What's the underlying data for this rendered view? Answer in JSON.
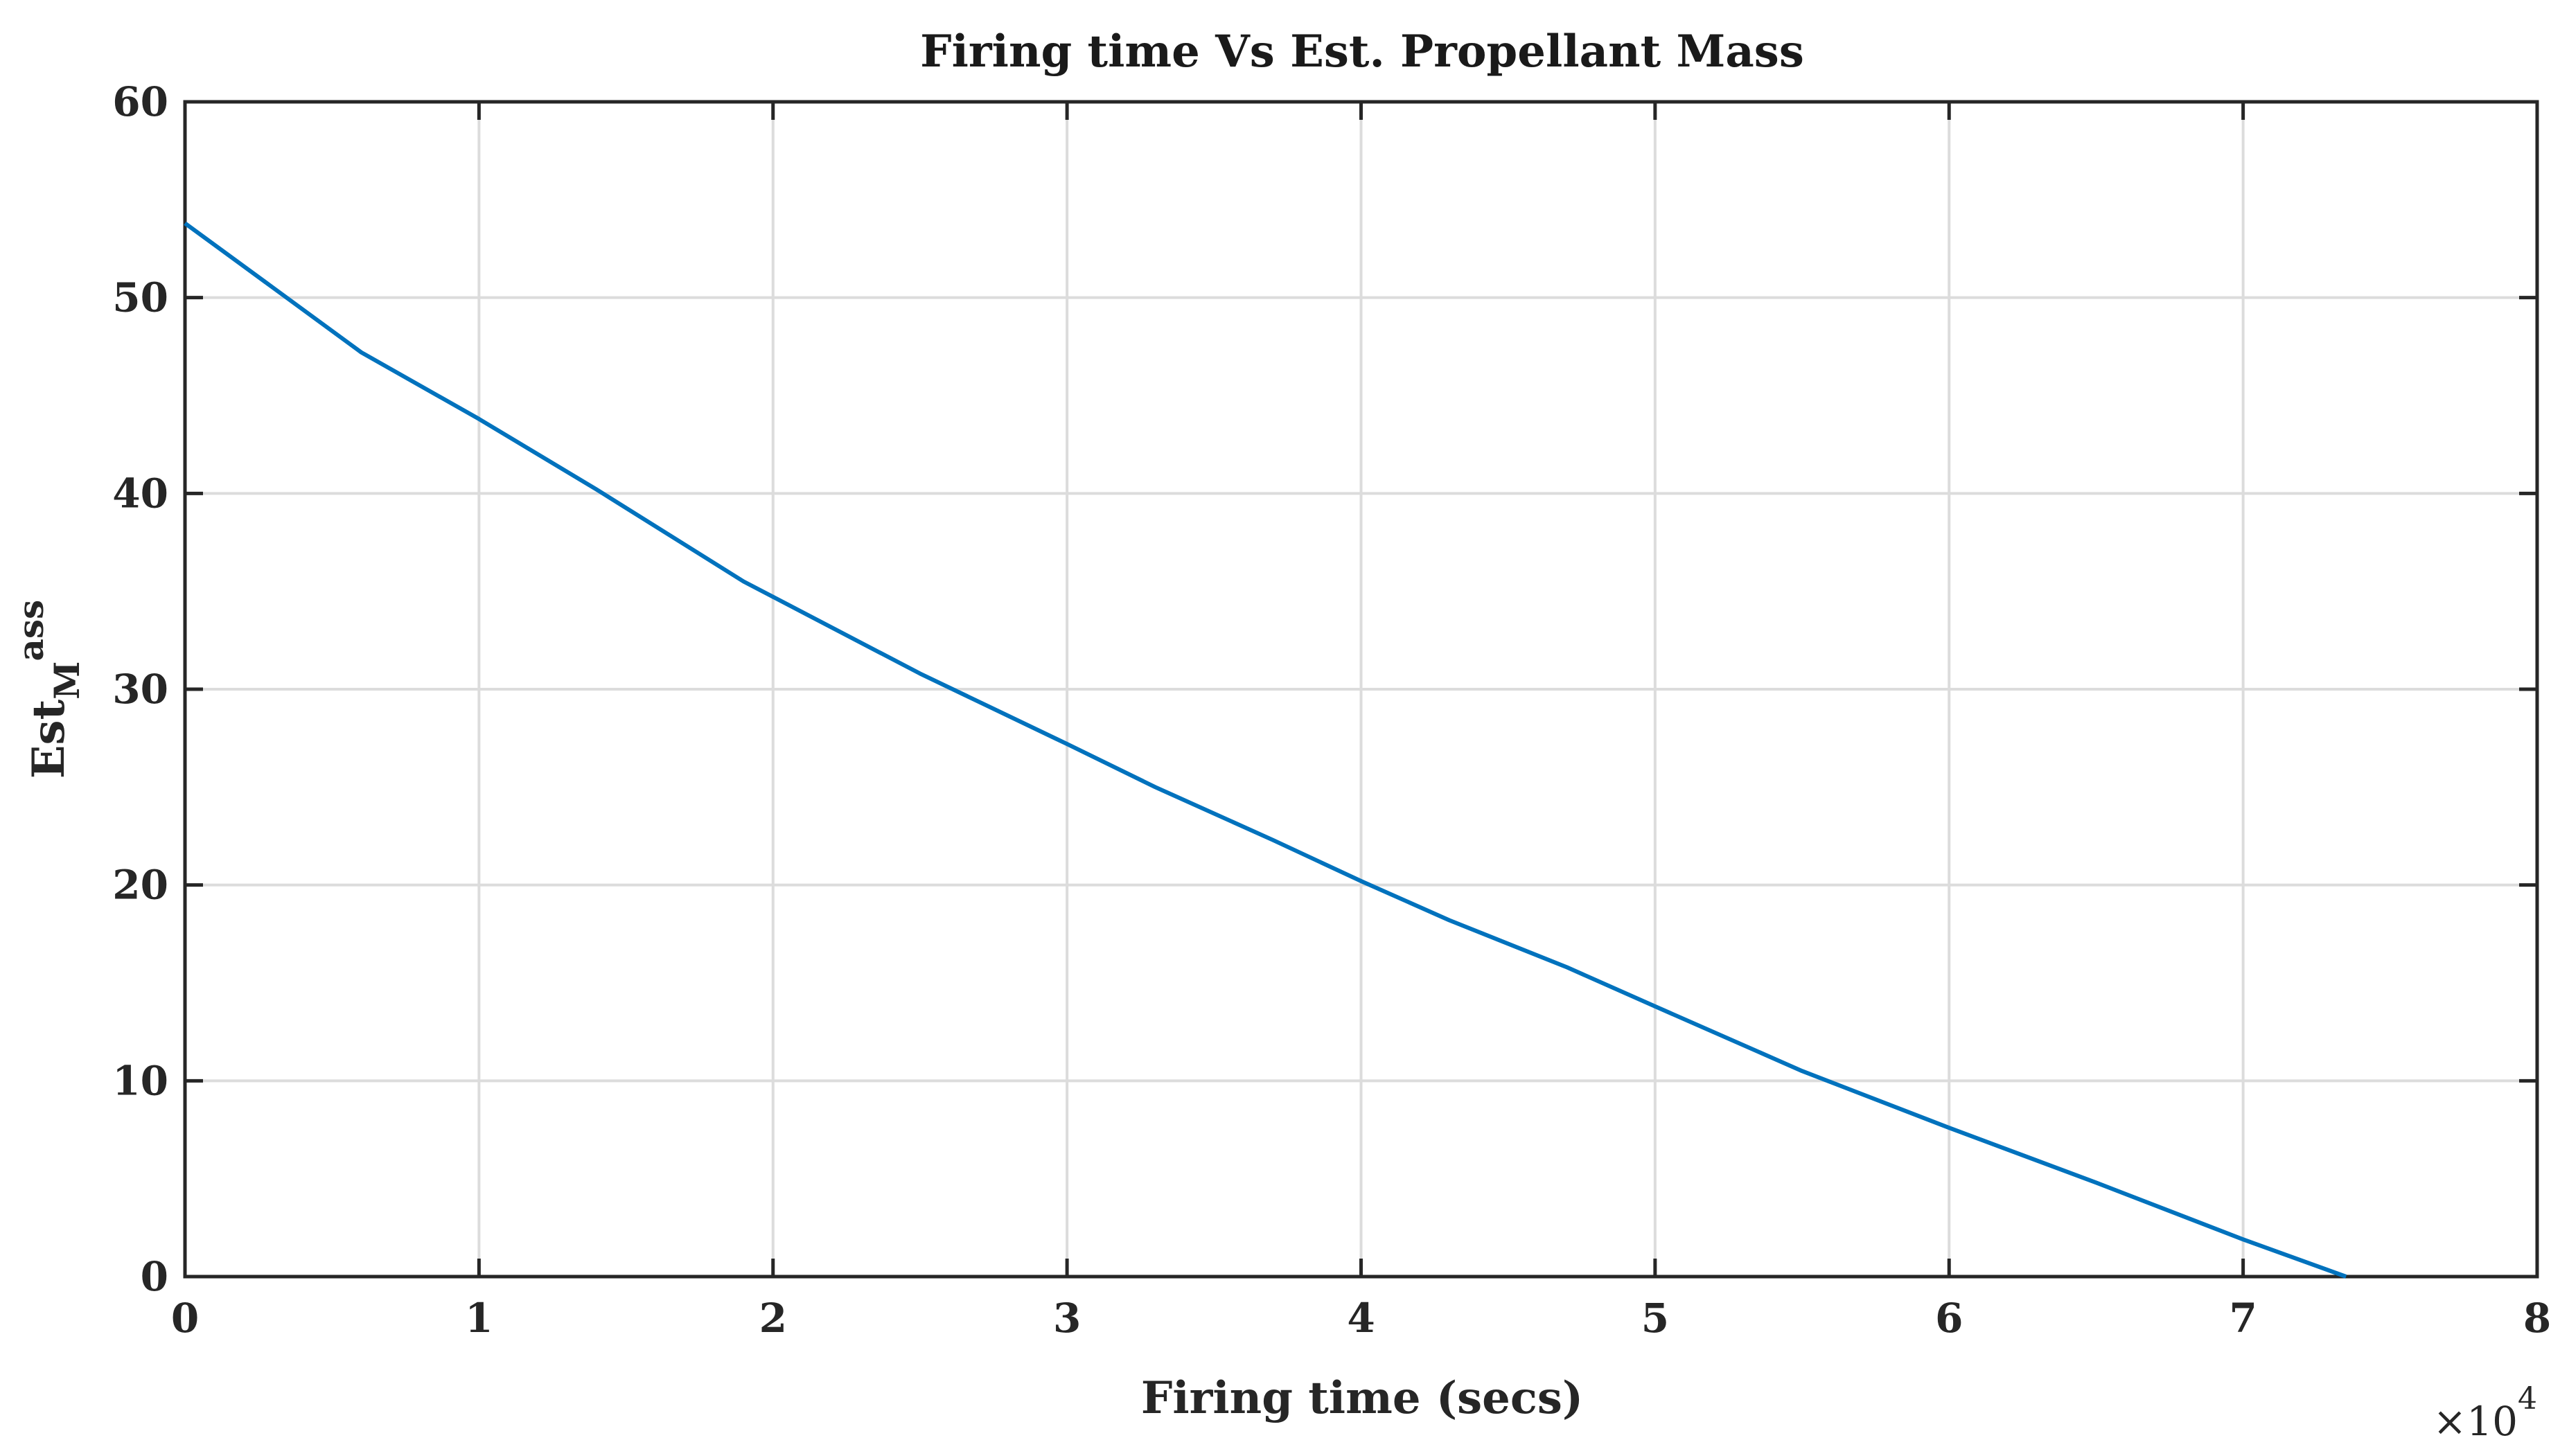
{
  "chart_data": {
    "type": "line",
    "title": "Firing time Vs Est. Propellant Mass",
    "xlabel": "Firing time (secs)",
    "ylabel": {
      "base": "Est",
      "sub": "M",
      "sup": "ass"
    },
    "x_multiplier": {
      "prefix": "×10",
      "power": "4"
    },
    "xlim": [
      0,
      8
    ],
    "ylim": [
      0,
      60
    ],
    "xticks": [
      0,
      1,
      2,
      3,
      4,
      5,
      6,
      7,
      8
    ],
    "yticks": [
      0,
      10,
      20,
      30,
      40,
      50,
      60
    ],
    "grid": true,
    "line_color": "#0072BD",
    "series": [
      {
        "x": [
          0,
          0.3,
          0.6,
          1.0,
          1.4,
          1.9,
          2.5,
          3.0,
          3.3,
          3.7,
          4.0,
          4.3,
          4.7,
          5.0,
          5.5,
          6.0,
          6.5,
          7.0,
          7.35
        ],
        "y": [
          53.8,
          50.5,
          47.2,
          43.8,
          40.2,
          35.5,
          30.8,
          27.2,
          25.0,
          22.3,
          20.2,
          18.2,
          15.8,
          13.8,
          10.5,
          7.6,
          4.8,
          1.9,
          0.0
        ]
      }
    ]
  }
}
